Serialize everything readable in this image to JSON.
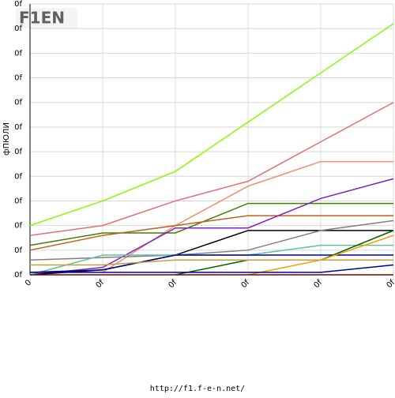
{
  "chart_data": {
    "type": "line",
    "logo": "F1EN",
    "y_label": "фПЮЛИ",
    "footer": "http://f1.f-e-n.net/",
    "x": [
      0,
      1,
      2,
      3,
      4,
      5
    ],
    "xlim": [
      0,
      5
    ],
    "xticks": [
      {
        "value": 0,
        "label": "0"
      },
      {
        "value": 1,
        "label": "0f"
      },
      {
        "value": 2,
        "label": "0f"
      },
      {
        "value": 3,
        "label": "0f"
      },
      {
        "value": 4,
        "label": "0f"
      },
      {
        "value": 5,
        "label": "0f"
      }
    ],
    "ylim": [
      0,
      110
    ],
    "yticks": [
      {
        "value": 0,
        "label": "0f"
      },
      {
        "value": 10,
        "label": "0f"
      },
      {
        "value": 20,
        "label": "0f"
      },
      {
        "value": 30,
        "label": "0f"
      },
      {
        "value": 40,
        "label": "0f"
      },
      {
        "value": 50,
        "label": "0f"
      },
      {
        "value": 60,
        "label": "0f"
      },
      {
        "value": 70,
        "label": "0f"
      },
      {
        "value": 80,
        "label": "0f"
      },
      {
        "value": 90,
        "label": "0f"
      },
      {
        "value": 100,
        "label": "0f"
      },
      {
        "value": 110,
        "label": "0f"
      }
    ],
    "grid": true,
    "series": [
      {
        "color": "#80ff00",
        "values": [
          20,
          30,
          42,
          62,
          82,
          102
        ]
      },
      {
        "color": "#e07070",
        "values": [
          16,
          20,
          30,
          38,
          54,
          70
        ]
      },
      {
        "color": "#f09070",
        "values": [
          null,
          1,
          20,
          36,
          46,
          46
        ]
      },
      {
        "color": "#408000",
        "values": [
          12,
          17,
          17,
          29,
          29,
          29
        ]
      },
      {
        "color": "#c06020",
        "values": [
          10,
          16,
          20,
          24,
          24,
          24
        ]
      },
      {
        "color": "#8020c0",
        "values": [
          0,
          3,
          19,
          19,
          31,
          39
        ]
      },
      {
        "color": "#000000",
        "values": [
          0,
          2,
          8,
          18,
          18,
          18
        ]
      },
      {
        "color": "#808080",
        "values": [
          6,
          7,
          8,
          10,
          18,
          22
        ]
      },
      {
        "color": "#60c0a0",
        "values": [
          0,
          8,
          8,
          8,
          12,
          12
        ]
      },
      {
        "color": "#000080",
        "values": [
          1,
          2,
          8,
          8,
          8,
          8
        ]
      },
      {
        "color": "#006000",
        "values": [
          null,
          null,
          0,
          6,
          6,
          18
        ]
      },
      {
        "color": "#f0a000",
        "values": [
          null,
          null,
          null,
          0,
          6,
          16
        ]
      },
      {
        "color": "#0000a0",
        "values": [
          1,
          1,
          1,
          1,
          1,
          4
        ]
      },
      {
        "color": "#c0a040",
        "values": [
          4,
          4,
          6,
          6,
          6,
          6
        ]
      },
      {
        "color": "#800000",
        "values": [
          0,
          0,
          0,
          0,
          0,
          0
        ]
      }
    ]
  }
}
